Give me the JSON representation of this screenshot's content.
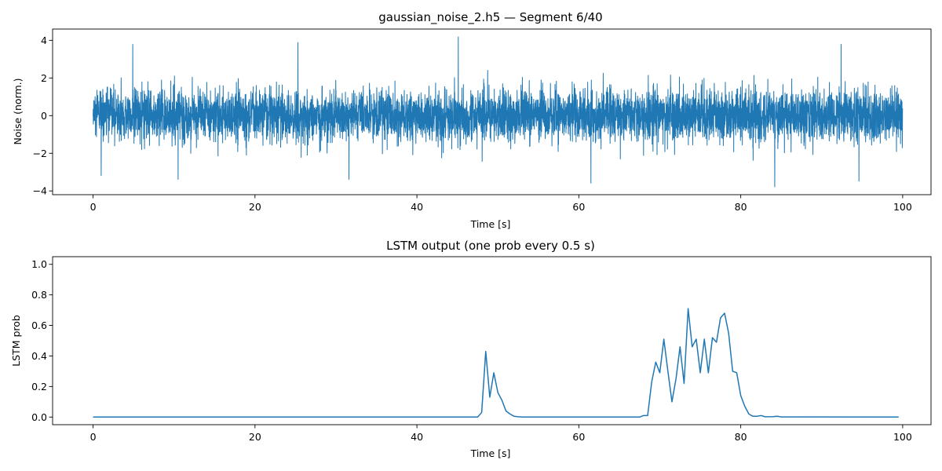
{
  "chart_data": [
    {
      "type": "line",
      "title": "gaussian_noise_2.h5 — Segment 6/40",
      "xlabel": "Time [s]",
      "ylabel": "Noise (norm.)",
      "xlim": [
        -5,
        103.5
      ],
      "ylim": [
        -4.2,
        4.6
      ],
      "xticks": [
        0,
        20,
        40,
        60,
        80,
        100
      ],
      "yticks": [
        -4,
        -2,
        0,
        2,
        4
      ],
      "xtick_labels": [
        "0",
        "20",
        "40",
        "60",
        "80",
        "100"
      ],
      "ytick_labels": [
        "−4",
        "−2",
        "0",
        "2",
        "4"
      ],
      "color": "#1f77b4",
      "grid": false,
      "legend": "none",
      "series": [
        {
          "description_of_signal": "dense zero-mean gaussian noise, std about 0.7, sampled densely over 0–100 s",
          "x_range": [
            0,
            100
          ],
          "mean": 0,
          "std": 0.7,
          "envelope_upper": 1.5,
          "envelope_lower": -1.5,
          "peaks": [
            {
              "x": 4.9,
              "y": 3.8
            },
            {
              "x": 25.3,
              "y": 3.9
            },
            {
              "x": 45.1,
              "y": 4.2
            },
            {
              "x": 92.4,
              "y": 3.8
            },
            {
              "x": 84.2,
              "y": -3.8
            },
            {
              "x": 61.5,
              "y": -3.6
            },
            {
              "x": 94.6,
              "y": -3.5
            },
            {
              "x": 31.6,
              "y": -3.4
            },
            {
              "x": 10.5,
              "y": -3.4
            },
            {
              "x": 1.0,
              "y": -3.2
            }
          ]
        }
      ]
    },
    {
      "type": "line",
      "title": "LSTM output (one prob every 0.5 s)",
      "xlabel": "Time [s]",
      "ylabel": "LSTM prob",
      "xlim": [
        -5,
        103.5
      ],
      "ylim": [
        -0.05,
        1.05
      ],
      "xticks": [
        0,
        20,
        40,
        60,
        80,
        100
      ],
      "yticks": [
        0.0,
        0.2,
        0.4,
        0.6,
        0.8,
        1.0
      ],
      "xtick_labels": [
        "0",
        "20",
        "40",
        "60",
        "80",
        "100"
      ],
      "ytick_labels": [
        "0.0",
        "0.2",
        "0.4",
        "0.6",
        "0.8",
        "1.0"
      ],
      "color": "#1f77b4",
      "grid": false,
      "legend": "none",
      "series": [
        {
          "x": [
            0,
            47.5,
            48.0,
            48.5,
            49.0,
            49.5,
            50.0,
            50.5,
            51.0,
            51.5,
            52.0,
            52.5,
            53.0,
            53.5,
            67.5,
            68.0,
            68.5,
            69.0,
            69.5,
            70.0,
            70.5,
            71.0,
            71.5,
            72.0,
            72.5,
            73.0,
            73.5,
            74.0,
            74.5,
            75.0,
            75.5,
            76.0,
            76.5,
            77.0,
            77.5,
            78.0,
            78.5,
            79.0,
            79.5,
            80.0,
            80.5,
            81.0,
            81.5,
            82.0,
            82.5,
            83.0,
            84.0,
            84.5,
            85.0,
            99.5
          ],
          "y": [
            0.0,
            0.0,
            0.03,
            0.43,
            0.13,
            0.29,
            0.16,
            0.11,
            0.04,
            0.02,
            0.005,
            0.002,
            0.0,
            0.0,
            0.0,
            0.01,
            0.01,
            0.23,
            0.36,
            0.29,
            0.51,
            0.3,
            0.1,
            0.25,
            0.46,
            0.22,
            0.71,
            0.46,
            0.51,
            0.29,
            0.51,
            0.29,
            0.52,
            0.49,
            0.65,
            0.68,
            0.55,
            0.3,
            0.29,
            0.14,
            0.07,
            0.02,
            0.005,
            0.005,
            0.01,
            0.002,
            0.003,
            0.005,
            0.001,
            0.0
          ]
        }
      ]
    }
  ]
}
